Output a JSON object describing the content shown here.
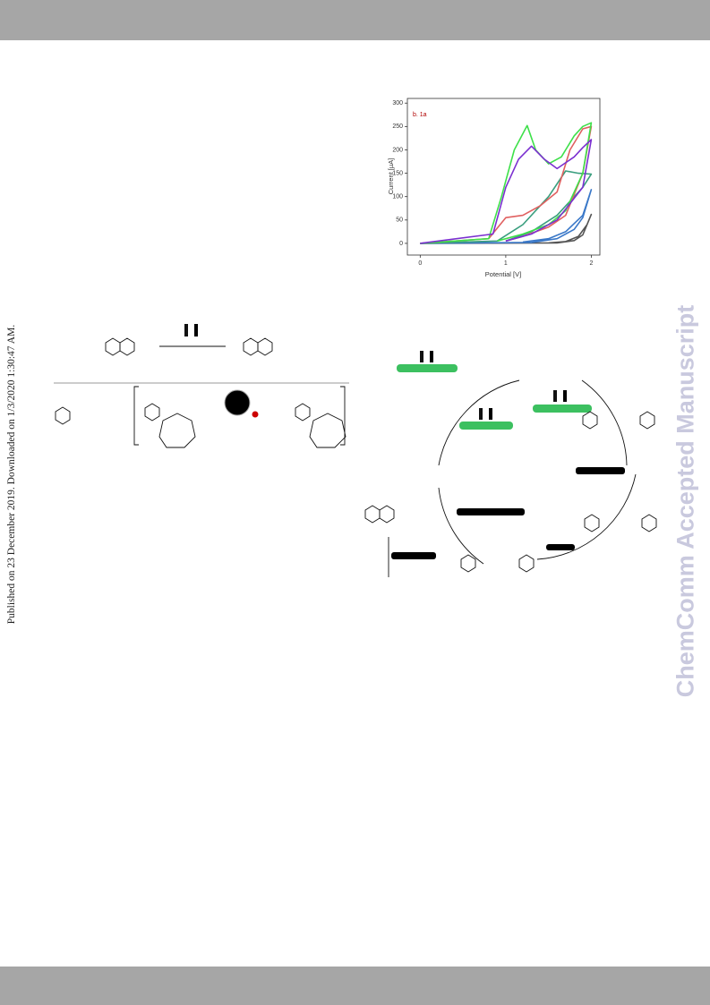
{
  "sidebar": "Published on 23 December 2019. Downloaded on 1/3/2020 1:30:47 AM.",
  "watermark": "ChemComm Accepted Manuscript",
  "chart_data": {
    "type": "line",
    "x_label": "Potential [V]",
    "y_label": "Current [µA]",
    "annotation": "b. 1a",
    "xlim": [
      -0.15,
      2.1
    ],
    "ylim": [
      -25,
      310
    ],
    "xticks": [
      0,
      1,
      2
    ],
    "yticks": [
      0,
      50,
      100,
      150,
      200,
      250,
      300
    ],
    "series": [
      {
        "color": "#555555",
        "x": [
          0,
          1.6,
          1.8,
          1.9,
          2.0,
          1.95,
          1.85,
          1.7,
          1.5
        ],
        "values": [
          0,
          1,
          6,
          18,
          62,
          40,
          15,
          4,
          1
        ]
      },
      {
        "color": "#3a78c8",
        "x": [
          0,
          1.3,
          1.6,
          1.8,
          1.9,
          2.0,
          1.9,
          1.7,
          1.5,
          1.2
        ],
        "values": [
          0,
          2,
          10,
          30,
          55,
          115,
          60,
          25,
          10,
          3
        ]
      },
      {
        "color": "#3a9e7e",
        "x": [
          0,
          0.9,
          1.2,
          1.5,
          1.7,
          1.85,
          2.0,
          1.9,
          1.6,
          1.3,
          1.0
        ],
        "values": [
          0,
          5,
          40,
          100,
          155,
          150,
          148,
          120,
          60,
          25,
          5
        ]
      },
      {
        "color": "#e06060",
        "x": [
          0,
          0.8,
          1.0,
          1.2,
          1.4,
          1.6,
          1.75,
          1.9,
          2.0,
          1.9,
          1.7,
          1.5,
          1.2,
          1.0
        ],
        "values": [
          0,
          10,
          55,
          60,
          80,
          110,
          200,
          245,
          250,
          150,
          60,
          35,
          15,
          5
        ]
      },
      {
        "color": "#3ee04a",
        "x": [
          0,
          0.8,
          0.95,
          1.1,
          1.25,
          1.35,
          1.5,
          1.65,
          1.8,
          1.9,
          2.0,
          1.9,
          1.7,
          1.5,
          1.2,
          0.9
        ],
        "values": [
          0,
          10,
          100,
          200,
          252,
          200,
          170,
          185,
          230,
          250,
          258,
          150,
          70,
          40,
          20,
          5
        ]
      },
      {
        "color": "#7b30d0",
        "x": [
          0,
          0.85,
          1.0,
          1.15,
          1.3,
          1.45,
          1.6,
          1.8,
          1.9,
          2.0,
          1.9,
          1.6,
          1.3,
          1.0
        ],
        "values": [
          0,
          20,
          120,
          180,
          208,
          180,
          160,
          185,
          205,
          222,
          120,
          50,
          20,
          5
        ]
      }
    ]
  }
}
